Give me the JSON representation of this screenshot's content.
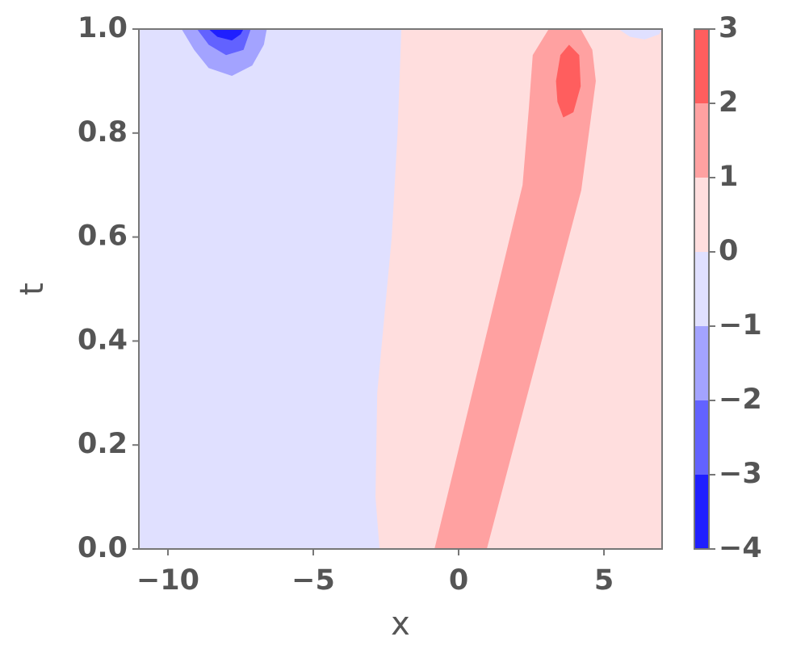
{
  "chart_data": {
    "type": "contour",
    "xlabel": "x",
    "ylabel": "t",
    "xlim": [
      -11,
      7
    ],
    "ylim": [
      0,
      1
    ],
    "xticks": [
      {
        "value": -10,
        "label": "−10"
      },
      {
        "value": -5,
        "label": "−5"
      },
      0,
      5
    ],
    "yticks": [
      {
        "value": 0,
        "label": "0.0"
      },
      0.2,
      0.4,
      0.6,
      0.8,
      {
        "value": 1,
        "label": "1.0"
      }
    ],
    "colorbar": {
      "levels": [
        {
          "value": -4,
          "label": "−4"
        },
        {
          "value": -3,
          "label": "−3"
        },
        {
          "value": -2,
          "label": "−2"
        },
        {
          "value": -1,
          "label": "−1"
        },
        0,
        1,
        2,
        3
      ],
      "colors": [
        "#1f1fff",
        "#6262ff",
        "#a3a3ff",
        "#e0e0ff",
        "#ffdede",
        "#ffa1a1",
        "#ff5e5e"
      ]
    },
    "background_level": 3,
    "regions": [
      {
        "level": 4,
        "points": [
          [
            -2.72,
            0
          ],
          [
            -2.86,
            0.1
          ],
          [
            -2.8,
            0.3
          ],
          [
            -2.3,
            0.6
          ],
          [
            -2.1,
            0.8
          ],
          [
            -1.97,
            1
          ],
          [
            7,
            1
          ],
          [
            7,
            0
          ]
        ]
      },
      {
        "level": 3,
        "points": [
          [
            5.5,
            1
          ],
          [
            5.9,
            0.985
          ],
          [
            6.4,
            0.98
          ],
          [
            6.9,
            0.99
          ],
          [
            7,
            1
          ]
        ]
      },
      {
        "level": 5,
        "points": [
          [
            -0.83,
            0
          ],
          [
            0.97,
            0
          ],
          [
            4.22,
            0.69
          ],
          [
            4.72,
            0.9
          ],
          [
            4.6,
            0.96
          ],
          [
            4.2,
            1
          ],
          [
            3.1,
            1
          ],
          [
            2.55,
            0.95
          ],
          [
            2.42,
            0.85
          ],
          [
            2.2,
            0.7
          ]
        ]
      },
      {
        "level": 6,
        "points": [
          [
            3.35,
            0.9
          ],
          [
            3.5,
            0.95
          ],
          [
            3.8,
            0.97
          ],
          [
            4.15,
            0.95
          ],
          [
            4.2,
            0.89
          ],
          [
            3.95,
            0.84
          ],
          [
            3.6,
            0.83
          ],
          [
            3.4,
            0.86
          ]
        ]
      },
      {
        "level": 2,
        "points": [
          [
            -9.53,
            1
          ],
          [
            -9.1,
            0.96
          ],
          [
            -8.6,
            0.925
          ],
          [
            -7.8,
            0.91
          ],
          [
            -7.1,
            0.93
          ],
          [
            -6.7,
            0.97
          ],
          [
            -6.6,
            1
          ]
        ]
      },
      {
        "level": 1,
        "points": [
          [
            -9,
            1
          ],
          [
            -8.6,
            0.97
          ],
          [
            -8,
            0.95
          ],
          [
            -7.4,
            0.96
          ],
          [
            -7.15,
            1
          ]
        ]
      },
      {
        "level": 0,
        "points": [
          [
            -8.6,
            1
          ],
          [
            -8.3,
            0.985
          ],
          [
            -7.8,
            0.978
          ],
          [
            -7.5,
            0.99
          ],
          [
            -7.4,
            1
          ]
        ]
      }
    ]
  }
}
